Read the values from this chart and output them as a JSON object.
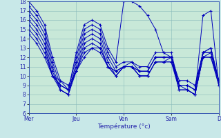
{
  "xlabel": "Température (°c)",
  "background_color": "#c8e8e8",
  "plot_bg_color": "#c8e8d8",
  "line_color": "#0000bb",
  "grid_color": "#88bbbb",
  "ylim": [
    6,
    18
  ],
  "xlim": [
    0,
    24
  ],
  "yticks": [
    6,
    7,
    8,
    9,
    10,
    11,
    12,
    13,
    14,
    15,
    16,
    17,
    18
  ],
  "day_labels": [
    "Mer",
    "Jeu",
    "Ven",
    "Sam",
    "D"
  ],
  "day_positions": [
    0,
    6,
    12,
    18,
    24
  ],
  "lines": [
    [
      18.0,
      17.0,
      15.5,
      12.0,
      9.5,
      8.5,
      12.5,
      15.5,
      16.0,
      15.5,
      13.0,
      11.5,
      18.0,
      18.0,
      17.5,
      16.5,
      15.0,
      12.5,
      12.0,
      9.0,
      8.5,
      8.0,
      16.5,
      17.0,
      9.0
    ],
    [
      17.5,
      16.5,
      15.0,
      11.5,
      9.0,
      8.5,
      12.0,
      15.0,
      15.5,
      15.0,
      12.5,
      11.0,
      11.5,
      11.5,
      11.0,
      11.0,
      12.5,
      12.5,
      12.5,
      9.0,
      9.0,
      8.5,
      12.5,
      12.5,
      9.0
    ],
    [
      17.0,
      16.0,
      14.5,
      11.0,
      8.5,
      8.0,
      11.5,
      14.5,
      15.0,
      14.5,
      12.0,
      10.5,
      11.0,
      11.0,
      10.5,
      10.5,
      12.0,
      12.0,
      12.0,
      8.5,
      8.5,
      8.0,
      12.0,
      12.0,
      9.0
    ],
    [
      16.5,
      15.5,
      14.0,
      10.5,
      8.5,
      8.0,
      11.0,
      14.0,
      14.5,
      14.0,
      11.5,
      10.0,
      11.0,
      11.0,
      10.5,
      10.5,
      12.0,
      12.0,
      12.0,
      8.5,
      8.5,
      8.0,
      12.0,
      12.0,
      9.5
    ],
    [
      16.0,
      15.0,
      13.5,
      10.0,
      8.5,
      8.0,
      10.5,
      13.5,
      14.0,
      13.5,
      11.0,
      10.0,
      11.0,
      11.0,
      10.0,
      10.0,
      11.5,
      11.5,
      11.5,
      8.5,
      8.5,
      8.0,
      12.0,
      12.5,
      9.5
    ],
    [
      15.5,
      14.5,
      13.0,
      10.0,
      9.0,
      8.5,
      10.5,
      13.0,
      13.5,
      13.0,
      11.0,
      10.0,
      11.0,
      11.0,
      10.0,
      10.0,
      11.5,
      11.5,
      11.5,
      9.0,
      9.0,
      8.5,
      12.5,
      12.5,
      9.5
    ],
    [
      15.0,
      14.0,
      12.5,
      10.0,
      9.0,
      8.5,
      10.5,
      12.5,
      13.0,
      13.0,
      11.0,
      10.5,
      11.0,
      11.0,
      10.0,
      10.0,
      11.5,
      11.5,
      12.0,
      9.0,
      9.0,
      8.5,
      12.5,
      13.0,
      9.5
    ],
    [
      14.5,
      13.5,
      12.0,
      10.0,
      9.5,
      9.0,
      10.5,
      12.0,
      13.0,
      12.5,
      11.0,
      10.5,
      11.0,
      11.5,
      10.5,
      10.5,
      12.0,
      12.0,
      12.0,
      9.5,
      9.5,
      9.0,
      12.5,
      13.0,
      9.5
    ]
  ]
}
